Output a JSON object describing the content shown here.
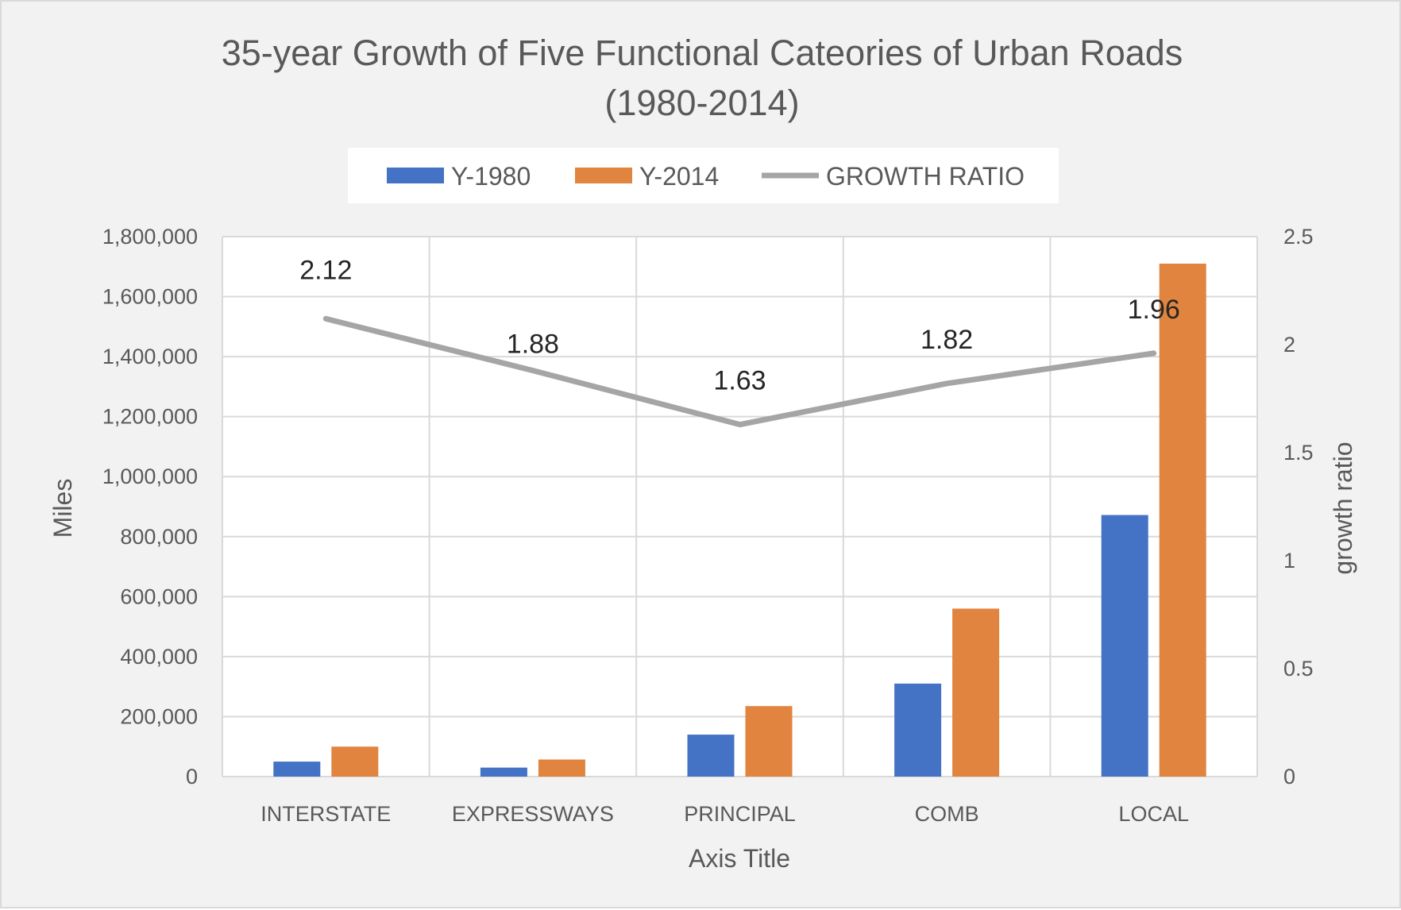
{
  "chart_data": {
    "type": "bar",
    "title": "35-year Growth of Five Functional Cateories  of Urban Roads",
    "subtitle": "(1980-2014)",
    "categories": [
      "INTERSTATE",
      "EXPRESSWAYS",
      "PRINCIPAL",
      "COMB",
      "LOCAL"
    ],
    "series": [
      {
        "name": "Y-1980",
        "type": "bar",
        "axis": "left",
        "color": "#4472c4",
        "values": [
          50000,
          30000,
          140000,
          310000,
          872000
        ]
      },
      {
        "name": "Y-2014",
        "type": "bar",
        "axis": "left",
        "color": "#e0843f",
        "values": [
          100000,
          57000,
          235000,
          560000,
          1710000
        ]
      },
      {
        "name": "GROWTH RATIO",
        "type": "line",
        "axis": "right",
        "color": "#a5a5a5",
        "values": [
          2.12,
          1.88,
          1.63,
          1.82,
          1.96
        ],
        "labels": [
          "2.12",
          "1.88",
          "1.63",
          "1.82",
          "1.96"
        ]
      }
    ],
    "xlabel": "Axis Title",
    "ylabel": "Miles",
    "y2label": "growth ratio",
    "ylim": [
      0,
      1800000
    ],
    "y2lim": [
      0,
      2.5
    ],
    "yticks": [
      "0",
      "200,000",
      "400,000",
      "600,000",
      "800,000",
      "1,000,000",
      "1,200,000",
      "1,400,000",
      "1,600,000",
      "1,800,000"
    ],
    "y2ticks": [
      "0",
      "0.5",
      "1",
      "1.5",
      "2",
      "2.5"
    ],
    "grid": true,
    "legend_position": "top"
  }
}
